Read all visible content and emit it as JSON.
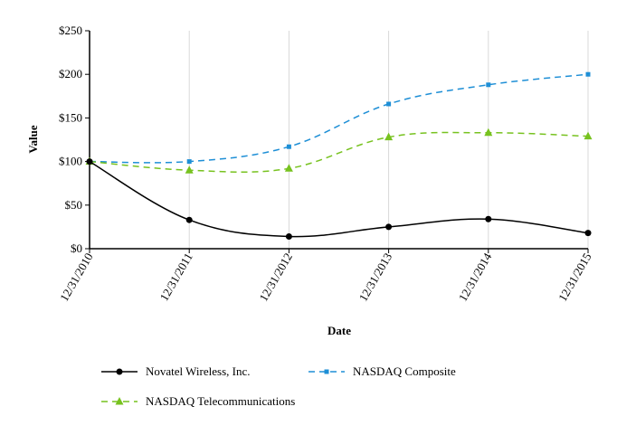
{
  "chart_data": {
    "type": "line",
    "xlabel": "Date",
    "ylabel": "Value",
    "categories": [
      "12/31/2010",
      "12/31/2011",
      "12/31/2012",
      "12/31/2013",
      "12/31/2014",
      "12/31/2015"
    ],
    "y_ticks": [
      "$0",
      "$50",
      "$100",
      "$150",
      "$200",
      "$250"
    ],
    "y_tick_values": [
      0,
      50,
      100,
      150,
      200,
      250
    ],
    "ylim": [
      0,
      250
    ],
    "grid": "vertical",
    "legend_placement": "bottom",
    "series": [
      {
        "name": "Novatel Wireless, Inc.",
        "values": [
          100,
          33,
          14,
          25,
          34,
          18
        ],
        "color": "#000000",
        "dash": "solid",
        "marker": "circle"
      },
      {
        "name": "NASDAQ Composite",
        "values": [
          100,
          100,
          117,
          166,
          188,
          200
        ],
        "color": "#1e8fd6",
        "dash": "dashed",
        "marker": "square"
      },
      {
        "name": "NASDAQ Telecommunications",
        "values": [
          100,
          90,
          92,
          128,
          133,
          129
        ],
        "color": "#77c21f",
        "dash": "dashed",
        "marker": "triangle"
      }
    ]
  }
}
